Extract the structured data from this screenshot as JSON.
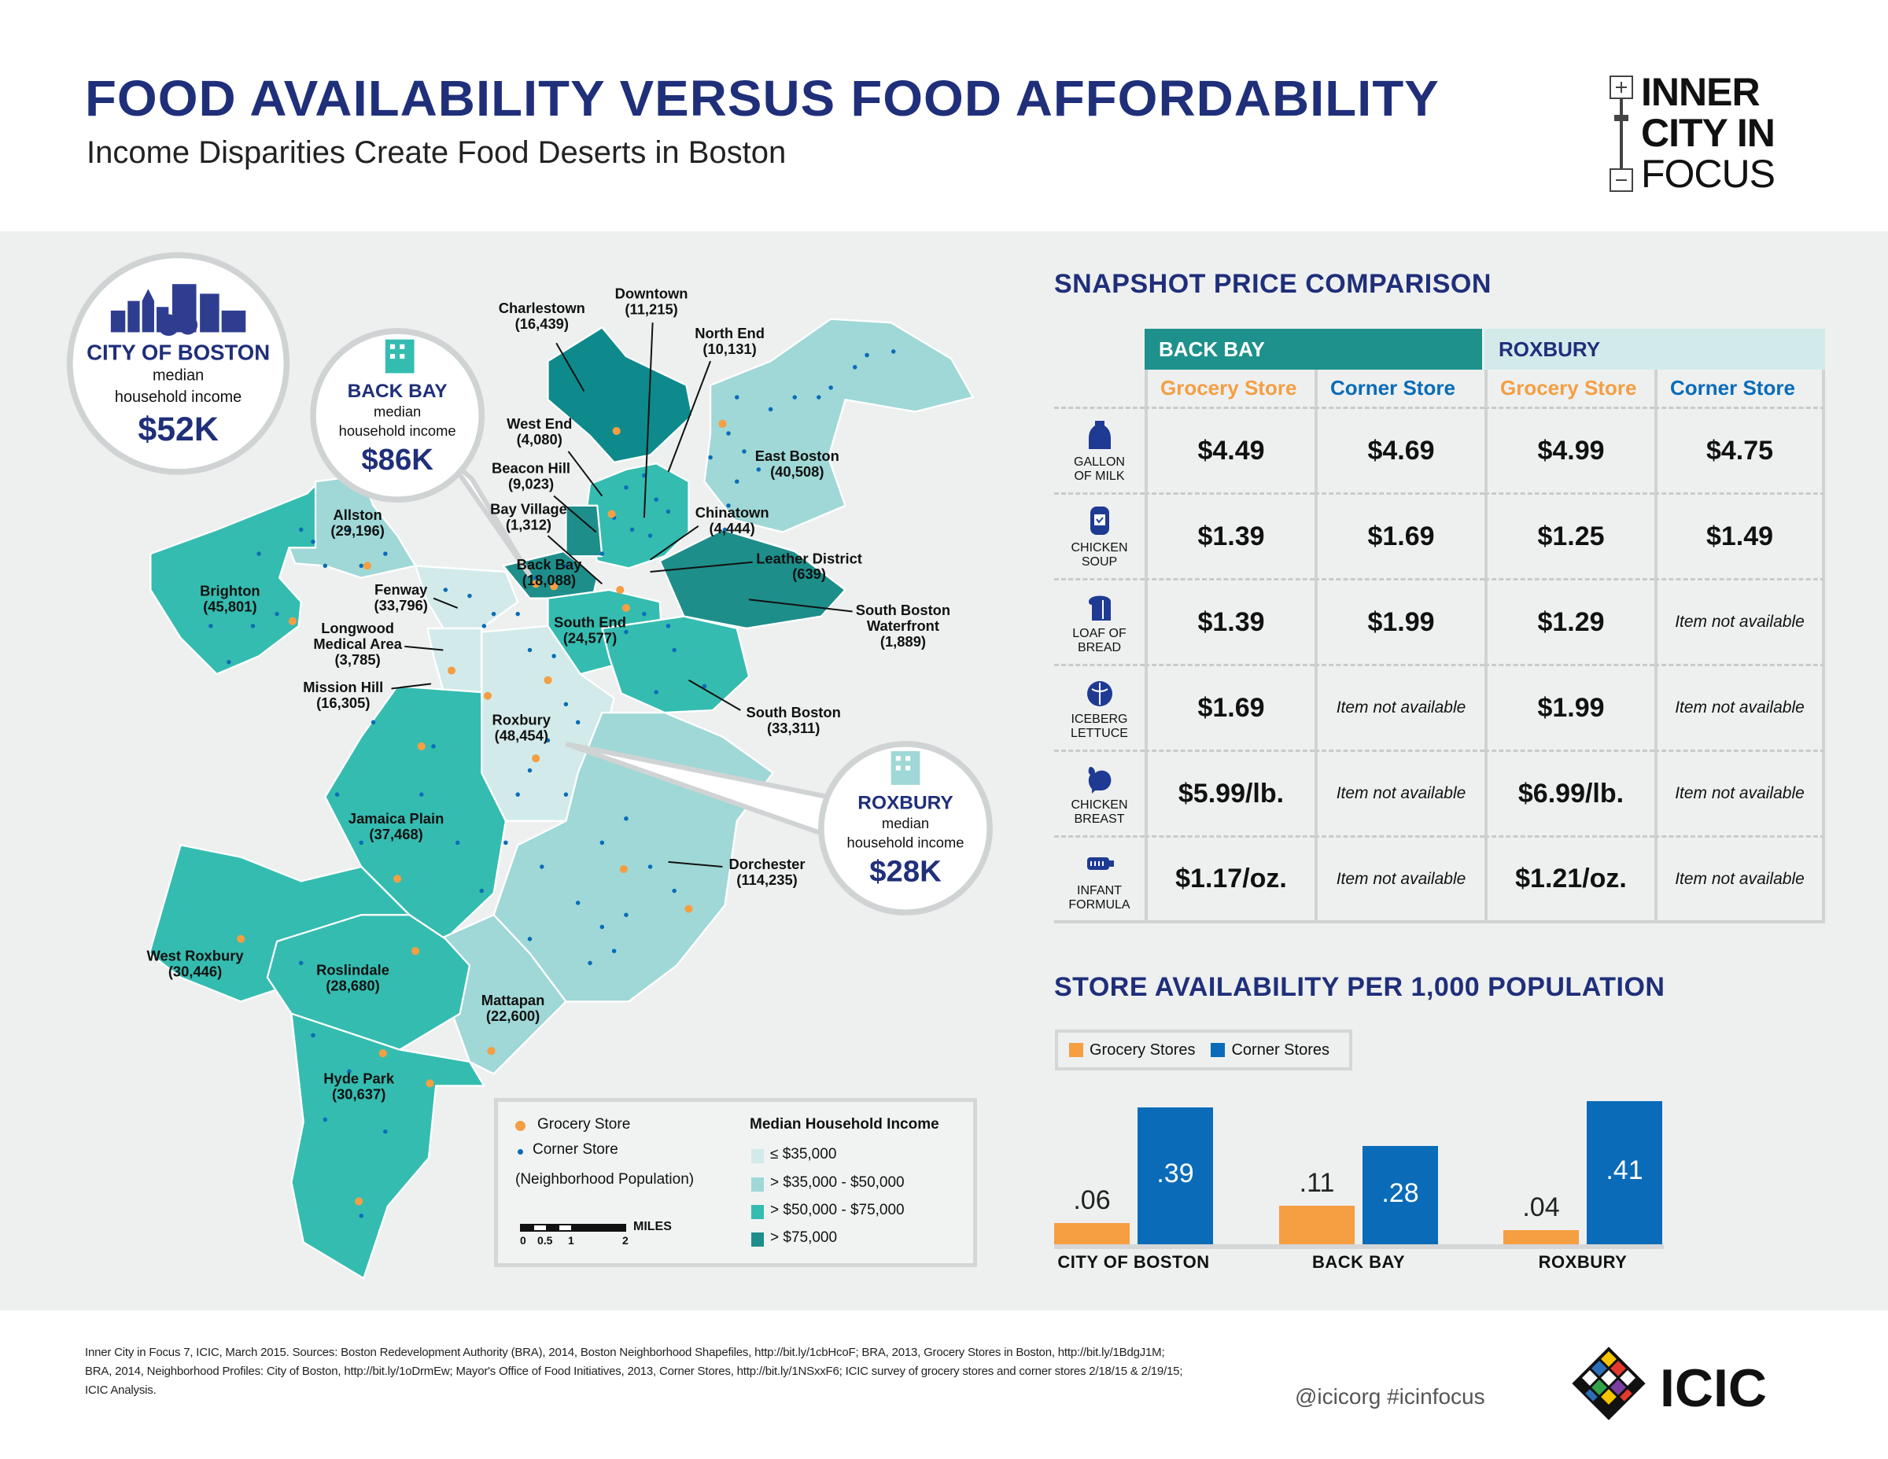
{
  "header": {
    "title": "FOOD AVAILABILITY VERSUS FOOD AFFORDABILITY",
    "subtitle": "Income Disparities Create Food Deserts in Boston"
  },
  "logo": {
    "lines": [
      "INNER",
      "CITY IN",
      "FOCUS"
    ]
  },
  "colors": {
    "navy": "#1f2f7a",
    "grocery": "#f59e42",
    "corner": "#0a6cb8",
    "income_lte35": "#d2ebea",
    "income_35_50": "#9fd8d6",
    "income_50_75": "#35bcb0",
    "income_gt75": "#1e8e8a"
  },
  "callouts": {
    "city": {
      "title": "CITY OF BOSTON",
      "line1": "median",
      "line2": "household income",
      "value": "$52K",
      "icon": "city-skyline-icon"
    },
    "backbay": {
      "title": "BACK BAY",
      "line1": "median",
      "line2": "household income",
      "value": "$86K",
      "icon": "building-icon"
    },
    "roxbury": {
      "title": "ROXBURY",
      "line1": "median",
      "line2": "household income",
      "value": "$28K",
      "icon": "building-icon"
    }
  },
  "neighborhoods": [
    {
      "name": "Charlestown",
      "pop": "(16,439)"
    },
    {
      "name": "Downtown",
      "pop": "(11,215)"
    },
    {
      "name": "North End",
      "pop": "(10,131)"
    },
    {
      "name": "West End",
      "pop": "(4,080)"
    },
    {
      "name": "Beacon Hill",
      "pop": "(9,023)"
    },
    {
      "name": "Bay Village",
      "pop": "(1,312)"
    },
    {
      "name": "Back Bay",
      "pop": "(18,088)"
    },
    {
      "name": "Allston",
      "pop": "(29,196)"
    },
    {
      "name": "Brighton",
      "pop": "(45,801)"
    },
    {
      "name": "Fenway",
      "pop": "(33,796)"
    },
    {
      "name": "Longwood",
      "name2": "Medical Area",
      "pop": "(3,785)"
    },
    {
      "name": "Mission Hill",
      "pop": "(16,305)"
    },
    {
      "name": "East Boston",
      "pop": "(40,508)"
    },
    {
      "name": "Chinatown",
      "pop": "(4,444)"
    },
    {
      "name": "Leather District",
      "pop": "(639)"
    },
    {
      "name": "South Boston",
      "name2": "Waterfront",
      "pop": "(1,889)"
    },
    {
      "name": "South End",
      "pop": "(24,577)"
    },
    {
      "name": "South Boston",
      "pop": "(33,311)"
    },
    {
      "name": "Roxbury",
      "pop": "(48,454)"
    },
    {
      "name": "Jamaica Plain",
      "pop": "(37,468)"
    },
    {
      "name": "Dorchester",
      "pop": "(114,235)"
    },
    {
      "name": "West Roxbury",
      "pop": "(30,446)"
    },
    {
      "name": "Roslindale",
      "pop": "(28,680)"
    },
    {
      "name": "Mattapan",
      "pop": "(22,600)"
    },
    {
      "name": "Hyde Park",
      "pop": "(30,637)"
    }
  ],
  "map_legend": {
    "grocery": "Grocery Store",
    "corner": "Corner Store",
    "population_note": "(Neighborhood Population)",
    "scale_ticks": [
      "0",
      "0.5",
      "1",
      "2"
    ],
    "scale_unit": "MILES",
    "income_title": "Median Household Income",
    "income_bins": [
      "≤ $35,000",
      "> $35,000 - $50,000",
      "> $50,000 - $75,000",
      "> $75,000"
    ]
  },
  "price": {
    "title": "SNAPSHOT PRICE COMPARISON",
    "areas": [
      "BACK BAY",
      "ROXBURY"
    ],
    "store_types": [
      "Grocery Store",
      "Corner Store",
      "Grocery Store",
      "Corner Store"
    ],
    "rows": [
      {
        "item1": "GALLON",
        "item2": "OF MILK",
        "icon": "milk-jug-icon",
        "values": [
          "$4.49",
          "$4.69",
          "$4.99",
          "$4.75"
        ]
      },
      {
        "item1": "CHICKEN",
        "item2": "SOUP",
        "icon": "soup-can-icon",
        "values": [
          "$1.39",
          "$1.69",
          "$1.25",
          "$1.49"
        ]
      },
      {
        "item1": "LOAF OF",
        "item2": "BREAD",
        "icon": "bread-icon",
        "values": [
          "$1.39",
          "$1.99",
          "$1.29",
          "Item not available"
        ]
      },
      {
        "item1": "ICEBERG",
        "item2": "LETTUCE",
        "icon": "lettuce-icon",
        "values": [
          "$1.69",
          "Item not available",
          "$1.99",
          "Item not available"
        ]
      },
      {
        "item1": "CHICKEN",
        "item2": "BREAST",
        "icon": "chicken-icon",
        "values": [
          "$5.99/lb.",
          "Item not available",
          "$6.99/lb.",
          "Item not available"
        ]
      },
      {
        "item1": "INFANT",
        "item2": "FORMULA",
        "icon": "baby-bottle-icon",
        "values": [
          "$1.17/oz.",
          "Item not available",
          "$1.21/oz.",
          "Item not available"
        ]
      }
    ]
  },
  "chart_data": {
    "type": "bar",
    "title": "STORE AVAILABILITY PER 1,000 POPULATION",
    "categories": [
      "CITY OF BOSTON",
      "BACK BAY",
      "ROXBURY"
    ],
    "series": [
      {
        "name": "Grocery Stores",
        "color": "#f59e42",
        "values": [
          0.06,
          0.11,
          0.04
        ],
        "labels": [
          ".06",
          ".11",
          ".04"
        ]
      },
      {
        "name": "Corner Stores",
        "color": "#0a6cb8",
        "values": [
          0.39,
          0.28,
          0.41
        ],
        "labels": [
          ".39",
          ".28",
          ".41"
        ]
      }
    ],
    "ylim": [
      0,
      0.45
    ],
    "legend": "top-left",
    "grid": false
  },
  "footer": {
    "source": "Inner City in Focus 7, ICIC, March 2015. Sources: Boston Redevelopment Authority (BRA), 2014, Boston Neighborhood Shapefiles, http://bit.ly/1cbHcoF; BRA, 2013, Grocery Stores in Boston, http://bit.ly/1BdgJ1M; BRA, 2014, Neighborhood Profiles: City of Boston, http://bit.ly/1oDrmEw; Mayor's Office of Food Initiatives, 2013, Corner Stores, http://bit.ly/1NSxxF6; ICIC survey of grocery stores and corner stores 2/18/15 & 2/19/15; ICIC Analysis.",
    "social": "@icicorg   #icinfocus",
    "brand": "ICIC"
  }
}
